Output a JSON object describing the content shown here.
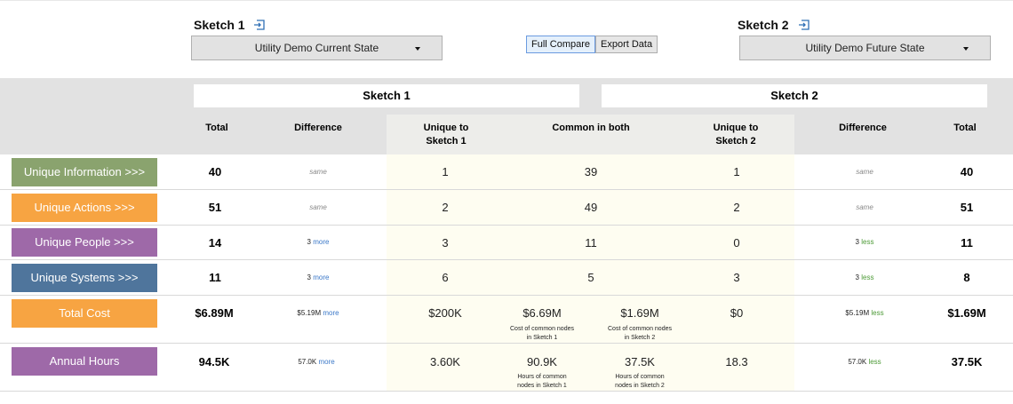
{
  "sketch1": {
    "title": "Sketch 1",
    "selected": "Utility Demo Current State"
  },
  "sketch2": {
    "title": "Sketch 2",
    "selected": "Utility Demo Future State"
  },
  "buttons": {
    "full_compare": "Full Compare",
    "export_data": "Export Data"
  },
  "header": {
    "sketch1": "Sketch 1",
    "sketch2": "Sketch 2",
    "total": "Total",
    "difference": "Difference",
    "unique1_a": "Unique to",
    "unique1_b": "Sketch 1",
    "common": "Common in both",
    "unique2_a": "Unique to",
    "unique2_b": "Sketch 2"
  },
  "rows": [
    {
      "label": "Unique Information >>>",
      "color": "#8aa36e",
      "total1": "40",
      "diff1_value": "same",
      "diff1_word": "",
      "u1": "1",
      "common": "39",
      "u2": "1",
      "diff2_value": "same",
      "diff2_word": "",
      "total2": "40"
    },
    {
      "label": "Unique Actions >>>",
      "color": "#f7a442",
      "total1": "51",
      "diff1_value": "same",
      "diff1_word": "",
      "u1": "2",
      "common": "49",
      "u2": "2",
      "diff2_value": "same",
      "diff2_word": "",
      "total2": "51"
    },
    {
      "label": "Unique People >>>",
      "color": "#9e69a8",
      "total1": "14",
      "diff1_value": "3",
      "diff1_word": "more",
      "u1": "3",
      "common": "11",
      "u2": "0",
      "diff2_value": "3",
      "diff2_word": "less",
      "total2": "11"
    },
    {
      "label": "Unique Systems >>>",
      "color": "#4f759c",
      "total1": "11",
      "diff1_value": "3",
      "diff1_word": "more",
      "u1": "6",
      "common": "5",
      "u2": "3",
      "diff2_value": "3",
      "diff2_word": "less",
      "total2": "8"
    }
  ],
  "cost": {
    "label": "Total Cost",
    "color": "#f7a442",
    "total1": "$6.89M",
    "diff1_value": "$5.19M",
    "diff1_word": "more",
    "u1": "$200K",
    "c1": "$6.69M",
    "c1_caption_a": "Cost of common nodes",
    "c1_caption_b": "in Sketch 1",
    "c2": "$1.69M",
    "c2_caption_a": "Cost of common nodes",
    "c2_caption_b": "in Sketch 2",
    "u2": "$0",
    "diff2_value": "$5.19M",
    "diff2_word": "less",
    "total2": "$1.69M"
  },
  "hours": {
    "label": "Annual Hours",
    "color": "#9e69a8",
    "total1": "94.5K",
    "diff1_value": "57.0K",
    "diff1_word": "more",
    "u1": "3.60K",
    "c1": "90.9K",
    "c1_caption_a": "Hours of common",
    "c1_caption_b": "nodes in Sketch 1",
    "c2": "37.5K",
    "c2_caption_a": "Hours of common",
    "c2_caption_b": "nodes in Sketch 2",
    "u2": "18.3",
    "diff2_value": "57.0K",
    "diff2_word": "less",
    "total2": "37.5K"
  }
}
